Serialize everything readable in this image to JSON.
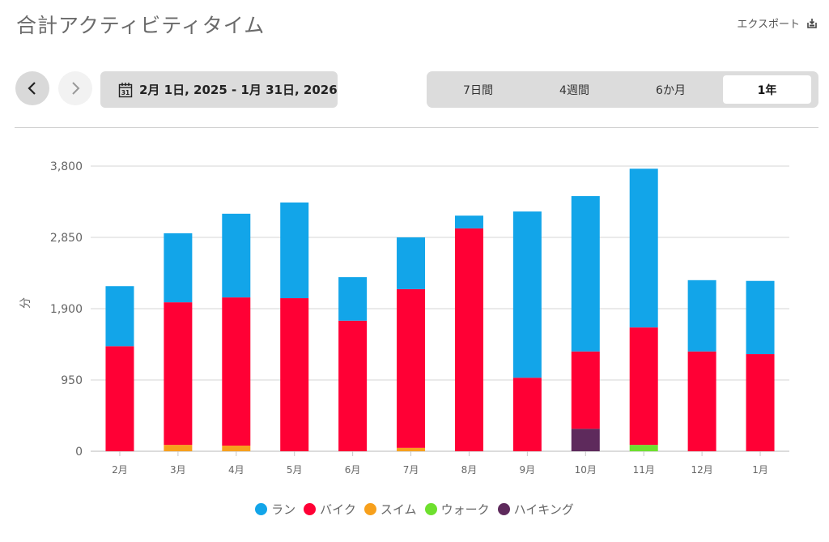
{
  "header": {
    "title": "合計アクティビティタイム",
    "export_label": "エクスポート",
    "export_icon": "export-icon"
  },
  "nav": {
    "prev_icon": "chevron-left-icon",
    "next_icon": "chevron-right-icon",
    "calendar_icon": "calendar-icon",
    "calendar_icon_text": "31",
    "date_range": "2月 1日, 2025 - 1月 31日, 2026"
  },
  "period_options": [
    {
      "label": "7日間",
      "active": false
    },
    {
      "label": "4週間",
      "active": false
    },
    {
      "label": "6か月",
      "active": false
    },
    {
      "label": "1年",
      "active": true
    }
  ],
  "chart_data": {
    "type": "bar",
    "stacked": true,
    "title": "合計アクティビティタイム",
    "xlabel": "",
    "ylabel": "分",
    "ylim": [
      0,
      3800
    ],
    "yticks": [
      0,
      950,
      1900,
      2850,
      3800
    ],
    "ytick_labels": [
      "0",
      "950",
      "1,900",
      "2,850",
      "3,800"
    ],
    "grid": true,
    "legend_position": "bottom-center",
    "categories": [
      "2月",
      "3月",
      "4月",
      "5月",
      "6月",
      "7月",
      "8月",
      "9月",
      "10月",
      "11月",
      "12月",
      "1月"
    ],
    "series": [
      {
        "name": "ハイキング",
        "color": "#5e2a5c",
        "values": [
          0,
          0,
          0,
          0,
          0,
          0,
          0,
          0,
          300,
          0,
          0,
          0
        ]
      },
      {
        "name": "ウォーク",
        "color": "#6ee02e",
        "values": [
          0,
          0,
          0,
          0,
          0,
          0,
          0,
          0,
          0,
          85,
          0,
          0
        ]
      },
      {
        "name": "スイム",
        "color": "#f7a01c",
        "values": [
          0,
          85,
          75,
          0,
          0,
          45,
          0,
          0,
          0,
          0,
          0,
          0
        ]
      },
      {
        "name": "バイク",
        "color": "#ff0035",
        "values": [
          1400,
          1900,
          1975,
          2040,
          1740,
          2115,
          2970,
          980,
          1030,
          1565,
          1330,
          1295
        ]
      },
      {
        "name": "ラン",
        "color": "#12a5e9",
        "values": [
          800,
          920,
          1115,
          1275,
          580,
          690,
          170,
          2215,
          2070,
          2115,
          950,
          975
        ]
      }
    ],
    "legend_order": [
      "ラン",
      "バイク",
      "スイム",
      "ウォーク",
      "ハイキング"
    ]
  }
}
